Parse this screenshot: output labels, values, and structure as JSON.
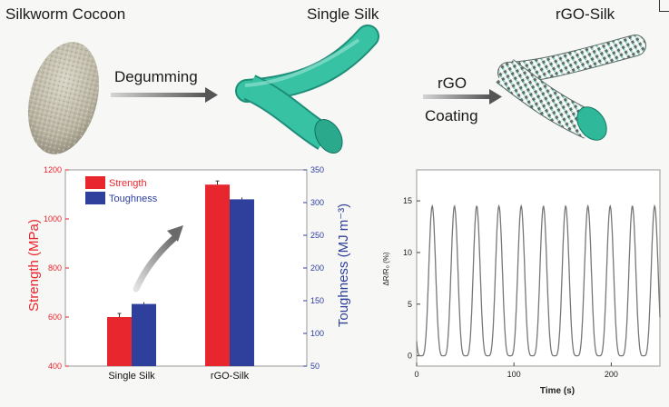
{
  "titles": {
    "cocoon": "Silkworm Cocoon",
    "single": "Single Silk",
    "rgo_silk": "rGO-Silk"
  },
  "process": {
    "step1": "Degumming",
    "step2_line1": "rGO",
    "step2_line2": "Coating"
  },
  "colors": {
    "silk": "#2fb89a",
    "strength": "#e8262e",
    "toughness": "#2e3f9c",
    "trace": "#777777"
  },
  "chart_data": [
    {
      "type": "bar",
      "categories": [
        "Single Silk",
        "rGO-Silk"
      ],
      "series": [
        {
          "name": "Strength",
          "axis": "left",
          "values": [
            600,
            1140
          ]
        },
        {
          "name": "Toughness",
          "axis": "right",
          "values": [
            145,
            305
          ]
        }
      ],
      "ylabel_left": "Strength (MPa)",
      "ylabel_right": "Toughness (MJ m⁻³)",
      "ylim_left": [
        400,
        1200
      ],
      "ylim_right": [
        50,
        350
      ],
      "yticks_left": [
        "400",
        "600",
        "800",
        "1000",
        "1200"
      ],
      "yticks_right": [
        "50",
        "100",
        "150",
        "200",
        "250",
        "300",
        "350"
      ],
      "legend": "top-left"
    },
    {
      "type": "line",
      "xlabel": "Time (s)",
      "ylabel": "ΔR/R₀ (%)",
      "xlim": [
        0,
        250
      ],
      "ylim": [
        -1,
        18
      ],
      "xticks": [
        "0",
        "100",
        "200"
      ],
      "yticks": [
        "0",
        "5",
        "10",
        "15"
      ],
      "cycles": 11,
      "peak": 14.5,
      "trough": 0
    }
  ]
}
